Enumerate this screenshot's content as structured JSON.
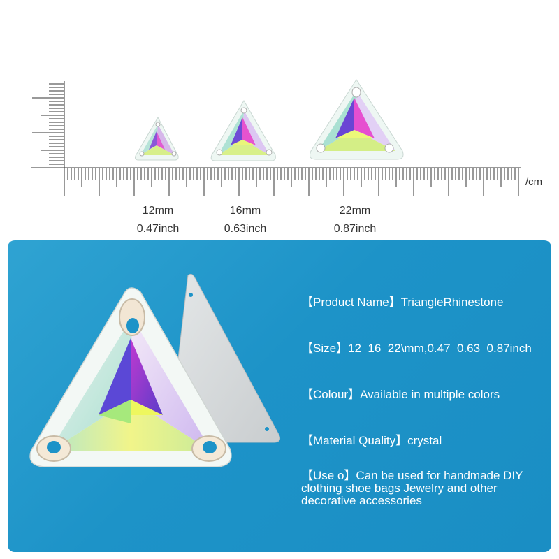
{
  "ruler": {
    "unit": "/cm"
  },
  "sizes": [
    {
      "mm": "12mm",
      "inch": "0.47inch"
    },
    {
      "mm": "16mm",
      "inch": "0.63inch"
    },
    {
      "mm": "22mm",
      "inch": "0.87inch"
    }
  ],
  "specs": {
    "product_name_key": "【Product Name】",
    "product_name_value": "TriangleRhinestone",
    "size_key": "【Size】",
    "size_value": "12  16  22\\mm,0.47  0.63  0.87inch",
    "colour_key": "【Colour】",
    "colour_value": "Available in multiple colors",
    "material_key": "【Material Quality】",
    "material_value": "crystal",
    "use_key": "【Use o】",
    "use_value": "Can be used for handmade DIY clothing shoe bags Jewelry and other decorative accessories"
  },
  "colors": {
    "panel_bg": "#1d93c8",
    "text_light": "#ffffff",
    "text_dark": "#333333"
  }
}
